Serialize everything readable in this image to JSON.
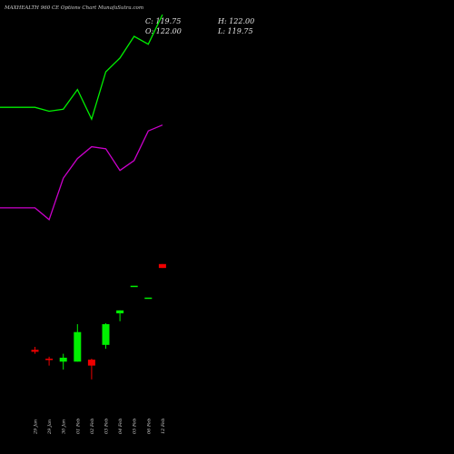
{
  "chart_data": {
    "type": "candlestick",
    "title": "MAXHEALTH 960 CE Options Chart MunafaSutra.com",
    "ohlc_summary": {
      "c_label": "C: 119.75",
      "h_label": "H: 122.00",
      "o_label": "O: 122.00",
      "l_label": "L: 119.75"
    },
    "x_tick_labels": [
      "29 Jan",
      "29 Jan",
      "30 Jan",
      "01 Feb",
      "02 Feb",
      "03 Feb",
      "04 Feb",
      "05 Feb",
      "06 Feb",
      "12 Feb"
    ],
    "price_range": [
      0,
      175
    ],
    "candles": [
      {
        "open": 16.0,
        "high": 17.5,
        "low": 14.0,
        "close": 15.0
      },
      {
        "open": 11.5,
        "high": 12.5,
        "low": 8.0,
        "close": 11.0
      },
      {
        "open": 10.0,
        "high": 14.0,
        "low": 6.0,
        "close": 12.0
      },
      {
        "open": 10.0,
        "high": 29.0,
        "low": 10.0,
        "close": 25.0
      },
      {
        "open": 11.0,
        "high": 11.5,
        "low": 1.0,
        "close": 8.0
      },
      {
        "open": 18.5,
        "high": 29.5,
        "low": 16.5,
        "close": 29.0
      },
      {
        "open": 34.5,
        "high": 36.0,
        "low": 30.5,
        "close": 36.0
      },
      {
        "open": 48.0,
        "high": 48.0,
        "low": 48.0,
        "close": 48.5
      },
      {
        "open": 42.5,
        "high": 42.5,
        "low": 42.5,
        "close": 42.5
      },
      {
        "open": 59.5,
        "high": 59.5,
        "low": 57.5,
        "close": 57.5
      }
    ],
    "indicators": [
      {
        "color": "#00ee00",
        "x_indices": [
          -1,
          0,
          1,
          2,
          3,
          4,
          5,
          6,
          7,
          8,
          9
        ],
        "values": [
          139,
          139,
          137,
          138,
          148,
          133,
          157,
          164,
          175,
          171,
          186
        ]
      },
      {
        "color": "#cc00cc",
        "x_indices": [
          -1,
          0,
          1,
          2,
          3,
          4,
          5,
          6,
          7,
          8,
          9
        ],
        "values": [
          88,
          88,
          82,
          103,
          113,
          119,
          118,
          107,
          112,
          127,
          130
        ]
      }
    ],
    "colors": {
      "background": "#000000",
      "up": "#00ee00",
      "down": "#ee0000"
    },
    "grid": false
  }
}
